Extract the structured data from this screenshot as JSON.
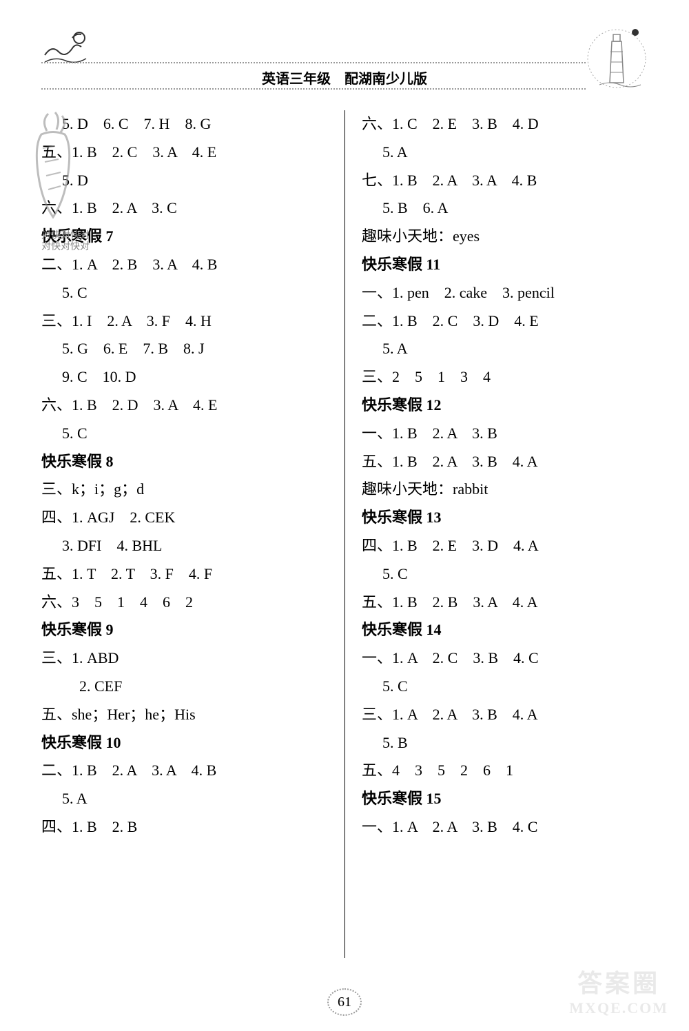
{
  "header": {
    "title": "英语三年级　配湖南少儿版"
  },
  "left_column": [
    {
      "cls": "row indent1",
      "text": "5. D　6. C　7. H　8. G"
    },
    {
      "cls": "row",
      "text": "五、1. B　2. C　3. A　4. E"
    },
    {
      "cls": "row indent1",
      "text": "5. D"
    },
    {
      "cls": "row",
      "text": "六、1. B　2. A　3. C"
    },
    {
      "cls": "row bold",
      "text": "快乐寒假 7"
    },
    {
      "cls": "row",
      "text": "二、1. A　2. B　3. A　4. B"
    },
    {
      "cls": "row indent1",
      "text": "5. C"
    },
    {
      "cls": "row",
      "text": "三、1. I　2. A　3. F　4. H"
    },
    {
      "cls": "row indent1",
      "text": "5. G　6. E　7. B　8. J"
    },
    {
      "cls": "row indent1",
      "text": "9. C　10. D"
    },
    {
      "cls": "row",
      "text": "六、1. B　2. D　3. A　4. E"
    },
    {
      "cls": "row indent1",
      "text": "5. C"
    },
    {
      "cls": "row bold",
      "text": "快乐寒假 8"
    },
    {
      "cls": "row",
      "text": "三、k；i；g；d"
    },
    {
      "cls": "row",
      "text": "四、1. AGJ　2. CEK"
    },
    {
      "cls": "row indent1",
      "text": "3. DFI　4. BHL"
    },
    {
      "cls": "row",
      "text": "五、1. T　2. T　3. F　4. F"
    },
    {
      "cls": "row",
      "text": "六、3　5　1　4　6　2"
    },
    {
      "cls": "row bold",
      "text": "快乐寒假 9"
    },
    {
      "cls": "row",
      "text": "三、1. ABD"
    },
    {
      "cls": "row indent2",
      "text": "2. CEF"
    },
    {
      "cls": "row",
      "text": "五、she；Her；he；His"
    },
    {
      "cls": "row bold",
      "text": "快乐寒假 10"
    },
    {
      "cls": "row",
      "text": "二、1. B　2. A　3. A　4. B"
    },
    {
      "cls": "row indent1",
      "text": "5. A"
    },
    {
      "cls": "row",
      "text": "四、1. B　2. B"
    }
  ],
  "right_column": [
    {
      "cls": "row",
      "text": "六、1. C　2. E　3. B　4. D"
    },
    {
      "cls": "row indent1",
      "text": "5. A"
    },
    {
      "cls": "row",
      "text": "七、1. B　2. A　3. A　4. B"
    },
    {
      "cls": "row indent1",
      "text": "5. B　6. A"
    },
    {
      "cls": "row",
      "text": "趣味小天地：eyes"
    },
    {
      "cls": "row bold",
      "text": "快乐寒假 11"
    },
    {
      "cls": "row",
      "text": "一、1. pen　2. cake　3. pencil"
    },
    {
      "cls": "row",
      "text": "二、1. B　2. C　3. D　4. E"
    },
    {
      "cls": "row indent1",
      "text": "5. A"
    },
    {
      "cls": "row",
      "text": "三、2　5　1　3　4"
    },
    {
      "cls": "row bold",
      "text": "快乐寒假 12"
    },
    {
      "cls": "row",
      "text": "一、1. B　2. A　3. B"
    },
    {
      "cls": "row",
      "text": "五、1. B　2. A　3. B　4. A"
    },
    {
      "cls": "row",
      "text": "趣味小天地：rabbit"
    },
    {
      "cls": "row bold",
      "text": "快乐寒假 13"
    },
    {
      "cls": "row",
      "text": "四、1. B　2. E　3. D　4. A"
    },
    {
      "cls": "row indent1",
      "text": "5. C"
    },
    {
      "cls": "row",
      "text": "五、1. B　2. B　3. A　4. A"
    },
    {
      "cls": "row bold",
      "text": "快乐寒假 14"
    },
    {
      "cls": "row",
      "text": "一、1. A　2. C　3. B　4. C"
    },
    {
      "cls": "row indent1",
      "text": "5. C"
    },
    {
      "cls": "row",
      "text": "三、1. A　2. A　3. B　4. A"
    },
    {
      "cls": "row indent1",
      "text": "5. B"
    },
    {
      "cls": "row",
      "text": "五、4　3　5　2　6　1"
    },
    {
      "cls": "row bold",
      "text": "快乐寒假 15"
    },
    {
      "cls": "row",
      "text": "一、1. A　2. A　3. B　4. C"
    }
  ],
  "watermark": {
    "line1": "对快对快对",
    "line2": "对快对快对"
  },
  "page_number": "61",
  "footer": {
    "cn": "答案圈",
    "en": "MXQE.COM"
  },
  "colors": {
    "background": "#ffffff",
    "text": "#000000",
    "dotted": "#999999",
    "watermark": "#888888"
  },
  "typography": {
    "body_fontsize": 22,
    "line_height": 40.8,
    "title_fontsize": 20
  }
}
